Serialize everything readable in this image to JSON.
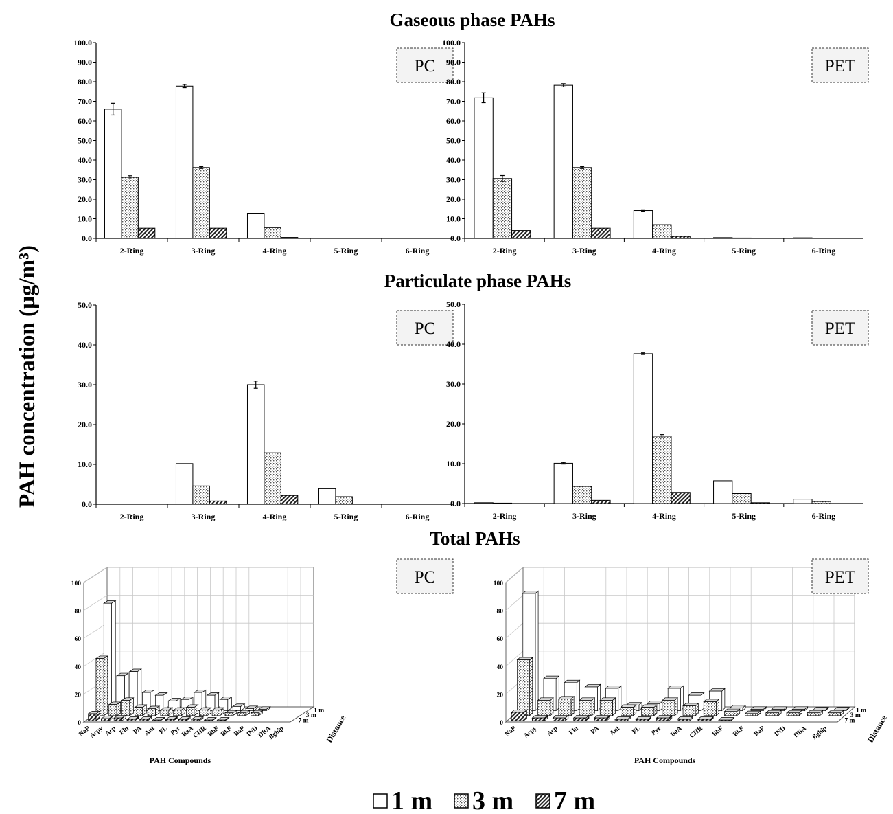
{
  "figure": {
    "y_axis_label": "PAH concentration (µg/m³)",
    "legend": [
      {
        "label": "1 m",
        "pattern": "white"
      },
      {
        "label": "3 m",
        "pattern": "dots"
      },
      {
        "label": "7 m",
        "pattern": "hatch"
      }
    ]
  },
  "sections": [
    {
      "title": "Gaseous phase PAHs"
    },
    {
      "title": "Particulate phase PAHs"
    },
    {
      "title": "Total PAHs"
    }
  ],
  "chart_data": [
    {
      "type": "bar",
      "section": "Gaseous phase PAHs",
      "panel_label": "PC",
      "categories": [
        "2-Ring",
        "3-Ring",
        "4-Ring",
        "5-Ring",
        "6-Ring"
      ],
      "series": [
        {
          "name": "1 m",
          "values": [
            66.0,
            77.8,
            12.8,
            0.0,
            0.0
          ],
          "errors": [
            3.0,
            0.8,
            0,
            0,
            0
          ]
        },
        {
          "name": "3 m",
          "values": [
            31.2,
            36.2,
            5.5,
            0.0,
            0.0
          ],
          "errors": [
            0.8,
            0.5,
            0,
            0,
            0
          ]
        },
        {
          "name": "7 m",
          "values": [
            5.2,
            5.2,
            0.5,
            0.0,
            0.0
          ],
          "errors": [
            0,
            0,
            0,
            0,
            0
          ]
        }
      ],
      "ylim": [
        0,
        100
      ],
      "yticks": [
        "0.0",
        "10.0",
        "20.0",
        "30.0",
        "40.0",
        "50.0",
        "60.0",
        "70.0",
        "80.0",
        "90.0",
        "100.0"
      ]
    },
    {
      "type": "bar",
      "section": "Gaseous phase PAHs",
      "panel_label": "PET",
      "categories": [
        "2-Ring",
        "3-Ring",
        "4-Ring",
        "5-Ring",
        "6-Ring"
      ],
      "series": [
        {
          "name": "1 m",
          "values": [
            71.8,
            78.2,
            14.2,
            0.4,
            0.3
          ],
          "errors": [
            2.5,
            0.8,
            0.4,
            0,
            0
          ]
        },
        {
          "name": "3 m",
          "values": [
            30.6,
            36.2,
            7.0,
            0.2,
            0.1
          ],
          "errors": [
            1.5,
            0.5,
            0,
            0,
            0
          ]
        },
        {
          "name": "7 m",
          "values": [
            4.0,
            5.2,
            1.0,
            0.0,
            0.0
          ],
          "errors": [
            0,
            0,
            0,
            0,
            0
          ]
        }
      ],
      "ylim": [
        0,
        100
      ],
      "yticks": [
        "0.0",
        "10.0",
        "20.0",
        "30.0",
        "40.0",
        "50.0",
        "60.0",
        "70.0",
        "80.0",
        "90.0",
        "100.0"
      ]
    },
    {
      "type": "bar",
      "section": "Particulate phase PAHs",
      "panel_label": "PC",
      "categories": [
        "2-Ring",
        "3-Ring",
        "4-Ring",
        "5-Ring",
        "6-Ring"
      ],
      "series": [
        {
          "name": "1 m",
          "values": [
            0.0,
            10.2,
            30.0,
            3.9,
            0.0
          ],
          "errors": [
            0,
            0,
            0.9,
            0,
            0
          ]
        },
        {
          "name": "3 m",
          "values": [
            0.0,
            4.6,
            12.9,
            1.9,
            0.0
          ],
          "errors": [
            0,
            0,
            0,
            0,
            0
          ]
        },
        {
          "name": "7 m",
          "values": [
            0.0,
            0.8,
            2.2,
            0.0,
            0.0
          ],
          "errors": [
            0,
            0,
            0,
            0,
            0
          ]
        }
      ],
      "ylim": [
        0,
        50
      ],
      "yticks": [
        "0.0",
        "10.0",
        "20.0",
        "30.0",
        "40.0",
        "50.0"
      ]
    },
    {
      "type": "bar",
      "section": "Particulate phase PAHs",
      "panel_label": "PET",
      "categories": [
        "2-Ring",
        "3-Ring",
        "4-Ring",
        "5-Ring",
        "6-Ring"
      ],
      "series": [
        {
          "name": "1 m",
          "values": [
            0.2,
            10.1,
            37.6,
            5.7,
            1.1
          ],
          "errors": [
            0,
            0.2,
            0.2,
            0,
            0
          ]
        },
        {
          "name": "3 m",
          "values": [
            0.1,
            4.3,
            16.9,
            2.5,
            0.5
          ],
          "errors": [
            0,
            0,
            0.4,
            0,
            0
          ]
        },
        {
          "name": "7 m",
          "values": [
            0.0,
            0.8,
            2.8,
            0.2,
            0.0
          ],
          "errors": [
            0,
            0,
            0,
            0,
            0
          ]
        }
      ],
      "ylim": [
        0,
        50
      ],
      "yticks": [
        "0.0",
        "10.0",
        "20.0",
        "30.0",
        "40.0",
        "50.0"
      ]
    },
    {
      "type": "bar3d",
      "section": "Total PAHs",
      "panel_label": "PC",
      "categories": [
        "NaP",
        "Acpy",
        "Acp",
        "Flu",
        "PA",
        "Ant",
        "FL",
        "Pyr",
        "BaA",
        "CHR",
        "BbF",
        "BkF",
        "BaP",
        "IND",
        "DBA",
        "Bghip"
      ],
      "depth_categories": [
        "1 m",
        "3 m",
        "7 m"
      ],
      "series": [
        {
          "name": "1 m",
          "values": [
            77,
            25,
            28,
            13,
            11,
            7,
            8,
            13,
            11,
            8,
            3,
            1.5,
            1,
            0,
            0,
            0
          ]
        },
        {
          "name": "3 m",
          "values": [
            41,
            8,
            11,
            6,
            5,
            4,
            4,
            6,
            4,
            4,
            2,
            2,
            2,
            0,
            0,
            0
          ]
        },
        {
          "name": "7 m",
          "values": [
            5,
            1.5,
            2,
            1,
            1,
            0.5,
            1,
            1,
            1,
            0.5,
            0.5,
            0,
            0,
            0,
            0,
            0
          ]
        }
      ],
      "xlabel": "PAH Compounds",
      "depth_label": "Distance",
      "ylim": [
        0,
        100
      ],
      "yticks": [
        "0",
        "20",
        "40",
        "60",
        "80",
        "100"
      ]
    },
    {
      "type": "bar3d",
      "section": "Total PAHs",
      "panel_label": "PET",
      "categories": [
        "NaP",
        "Acpy",
        "Acp",
        "Flu",
        "PA",
        "Ant",
        "FL",
        "Pyr",
        "BaA",
        "CHR",
        "BbF",
        "BkF",
        "BaP",
        "IND",
        "DBA",
        "Bghip"
      ],
      "depth_categories": [
        "1 m",
        "3 m",
        "7 m"
      ],
      "series": [
        {
          "name": "1 m",
          "values": [
            84,
            23,
            20,
            17,
            16,
            4,
            5,
            16,
            11,
            14,
            2,
            1,
            1,
            1,
            0.5,
            0.5
          ]
        },
        {
          "name": "3 m",
          "values": [
            40,
            11,
            12,
            11,
            11,
            6,
            6,
            11,
            7,
            10,
            3,
            1.5,
            2,
            2,
            2,
            2
          ]
        },
        {
          "name": "7 m",
          "values": [
            6,
            2,
            2,
            2,
            2,
            1,
            1,
            2,
            1,
            1,
            0.5,
            0,
            0,
            0,
            0,
            0
          ]
        }
      ],
      "xlabel": "PAH Compounds",
      "depth_label": "Distance",
      "ylim": [
        0,
        100
      ],
      "yticks": [
        "0",
        "20",
        "40",
        "60",
        "80",
        "100"
      ]
    }
  ]
}
